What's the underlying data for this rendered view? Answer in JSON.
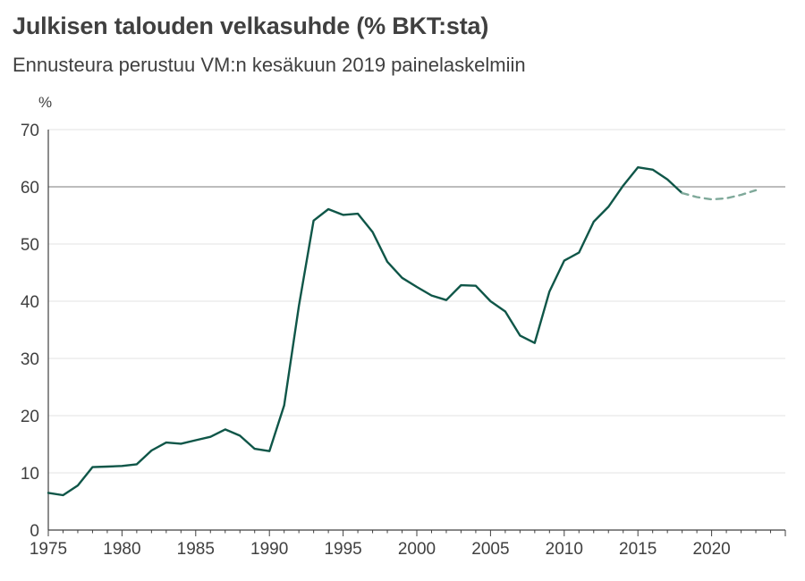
{
  "chart_data": {
    "type": "line",
    "title": "Julkisen talouden velkasuhde (% BKT:sta)",
    "subtitle": "Ennusteura perustuu VM:n kesäkuun 2019 painelaskelmiin",
    "ylabel": "%",
    "xlim": [
      1975,
      2025
    ],
    "ylim": [
      0,
      70
    ],
    "y_ticks": [
      0,
      10,
      20,
      30,
      40,
      50,
      60,
      70
    ],
    "x_ticks": [
      1975,
      1980,
      1985,
      1990,
      1995,
      2000,
      2005,
      2010,
      2015,
      2020
    ],
    "reference_line": 60,
    "grid": true,
    "colors": {
      "actual": "#0f5648",
      "forecast": "#7fa99a",
      "grid": "#e3e3e3",
      "reference": "#a6a6a6"
    },
    "series": [
      {
        "style": "solid",
        "x": [
          1975,
          1976,
          1977,
          1978,
          1979,
          1980,
          1981,
          1982,
          1983,
          1984,
          1985,
          1986,
          1987,
          1988,
          1989,
          1990,
          1991,
          1992,
          1993,
          1994,
          1995,
          1996,
          1997,
          1998,
          1999,
          2000,
          2001,
          2002,
          2003,
          2004,
          2005,
          2006,
          2007,
          2008,
          2009,
          2010,
          2011,
          2012,
          2013,
          2014,
          2015,
          2016,
          2017,
          2018
        ],
        "values": [
          6.5,
          6.1,
          7.8,
          11.0,
          11.1,
          11.2,
          11.5,
          13.9,
          15.3,
          15.1,
          15.7,
          16.3,
          17.6,
          16.5,
          14.2,
          13.8,
          21.8,
          39.2,
          54.1,
          56.1,
          55.1,
          55.3,
          52.1,
          46.9,
          44.1,
          42.5,
          41.0,
          40.2,
          42.8,
          42.7,
          40.0,
          38.2,
          34.0,
          32.7,
          41.7,
          47.1,
          48.5,
          53.9,
          56.5,
          60.2,
          63.4,
          63.0,
          61.3,
          58.9
        ]
      },
      {
        "style": "dashed",
        "x": [
          2018,
          2019,
          2020,
          2021,
          2022,
          2023
        ],
        "values": [
          58.9,
          58.2,
          57.8,
          58.0,
          58.6,
          59.4
        ]
      }
    ]
  }
}
